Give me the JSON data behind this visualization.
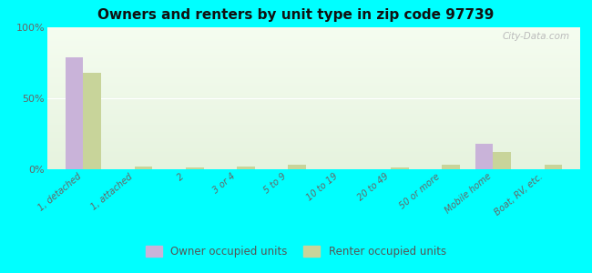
{
  "title": "Owners and renters by unit type in zip code 97739",
  "categories": [
    "1, detached",
    "1, attached",
    "2",
    "3 or 4",
    "5 to 9",
    "10 to 19",
    "20 to 49",
    "50 or more",
    "Mobile home",
    "Boat, RV, etc."
  ],
  "owner_values": [
    79,
    0,
    0,
    0,
    0,
    0,
    0,
    0,
    18,
    0
  ],
  "renter_values": [
    68,
    2,
    1,
    2,
    3,
    0,
    1,
    3,
    12,
    3
  ],
  "owner_color": "#c9b3d9",
  "renter_color": "#c8d49a",
  "outer_bg": "#00ffff",
  "ymax": 100,
  "yticks": [
    0,
    50,
    100
  ],
  "ytick_labels": [
    "0%",
    "50%",
    "100%"
  ],
  "bar_width": 0.35,
  "legend_owner": "Owner occupied units",
  "legend_renter": "Renter occupied units",
  "watermark": "City-Data.com"
}
